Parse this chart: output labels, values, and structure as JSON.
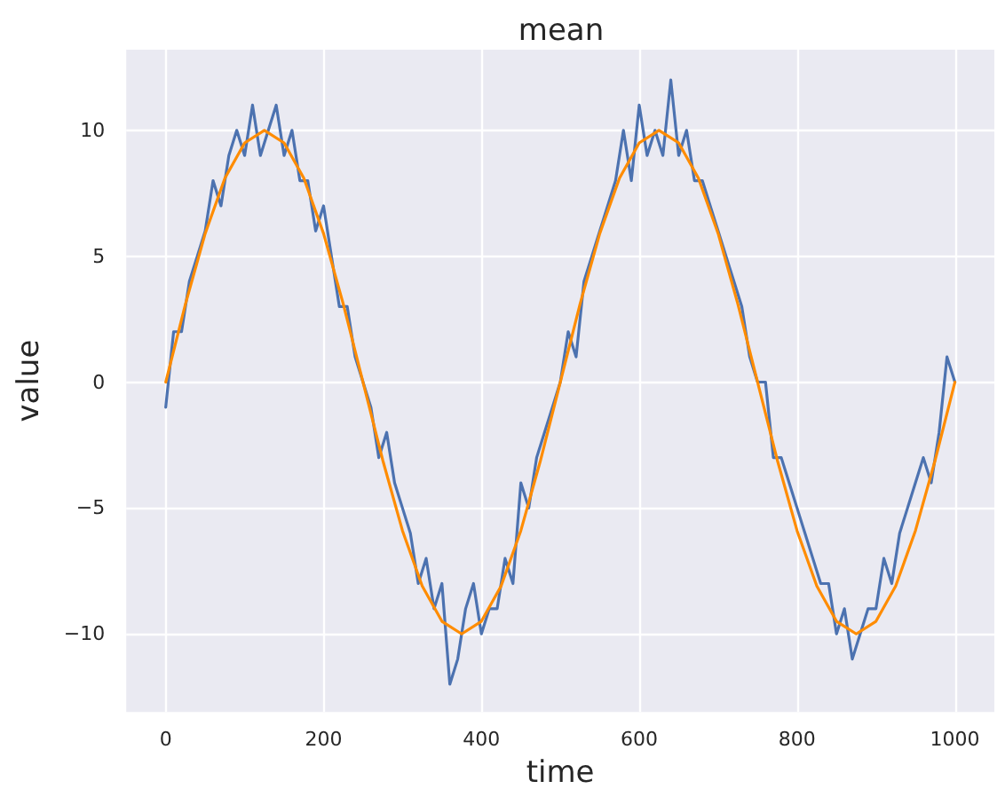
{
  "chart_data": {
    "type": "line",
    "title": "mean",
    "xlabel": "time",
    "ylabel": "value",
    "xlim": [
      -50,
      1050
    ],
    "xticks": [
      0,
      200,
      400,
      600,
      800,
      1000
    ],
    "ylim": [
      -13.1,
      13.2
    ],
    "yticks": [
      -10,
      -5,
      0,
      5,
      10
    ],
    "grid": true,
    "marker": "none",
    "line_style": "solid",
    "series": [
      {
        "color": "#4c72b0",
        "x": [
          0,
          10,
          20,
          30,
          40,
          50,
          60,
          70,
          80,
          90,
          100,
          110,
          120,
          130,
          140,
          150,
          160,
          170,
          180,
          190,
          200,
          210,
          220,
          230,
          240,
          250,
          260,
          270,
          280,
          290,
          300,
          310,
          320,
          330,
          340,
          350,
          360,
          370,
          380,
          390,
          400,
          410,
          420,
          430,
          440,
          450,
          460,
          470,
          480,
          490,
          500,
          510,
          520,
          530,
          540,
          550,
          560,
          570,
          580,
          590,
          600,
          610,
          620,
          630,
          640,
          650,
          660,
          670,
          680,
          690,
          700,
          710,
          720,
          730,
          740,
          750,
          760,
          770,
          780,
          790,
          800,
          810,
          820,
          830,
          840,
          850,
          860,
          870,
          880,
          890,
          900,
          910,
          920,
          930,
          940,
          950,
          960,
          970,
          980,
          990,
          1000
        ],
        "values": [
          -1,
          2,
          2,
          4,
          5,
          6,
          8,
          7,
          9,
          10,
          9,
          11,
          9,
          10,
          11,
          9,
          10,
          8,
          8,
          6,
          7,
          5,
          3,
          3,
          1,
          0,
          -1,
          -3,
          -2,
          -4,
          -5,
          -6,
          -8,
          -7,
          -9,
          -8,
          -12,
          -11,
          -9,
          -8,
          -10,
          -9,
          -9,
          -7,
          -8,
          -4,
          -5,
          -3,
          -2,
          -1,
          0,
          2,
          1,
          4,
          5,
          6,
          7,
          8,
          10,
          8,
          11,
          9,
          10,
          9,
          12,
          9,
          10,
          8,
          8,
          7,
          6,
          5,
          4,
          3,
          1,
          0,
          0,
          -3,
          -3,
          -4,
          -5,
          -6,
          -7,
          -8,
          -8,
          -10,
          -9,
          -11,
          -10,
          -9,
          -9,
          -7,
          -8,
          -6,
          -5,
          -4,
          -3,
          -4,
          -2,
          1,
          0
        ]
      },
      {
        "color": "#ff8c00",
        "x": [
          0,
          25,
          50,
          75,
          100,
          125,
          150,
          175,
          200,
          225,
          250,
          275,
          300,
          325,
          350,
          375,
          400,
          425,
          450,
          475,
          500,
          525,
          550,
          575,
          600,
          625,
          650,
          675,
          700,
          725,
          750,
          775,
          800,
          825,
          850,
          875,
          900,
          925,
          950,
          975,
          1000
        ],
        "values": [
          0,
          3.1,
          5.9,
          8.1,
          9.5,
          10,
          9.5,
          8.1,
          5.9,
          3.1,
          0,
          -3.1,
          -5.9,
          -8.1,
          -9.5,
          -10,
          -9.5,
          -8.1,
          -5.9,
          -3.1,
          0,
          3.1,
          5.9,
          8.1,
          9.5,
          10,
          9.5,
          8.1,
          5.9,
          3.1,
          0,
          -3.1,
          -5.9,
          -8.1,
          -9.5,
          -10,
          -9.5,
          -8.1,
          -5.9,
          -3.1,
          0
        ]
      }
    ]
  }
}
